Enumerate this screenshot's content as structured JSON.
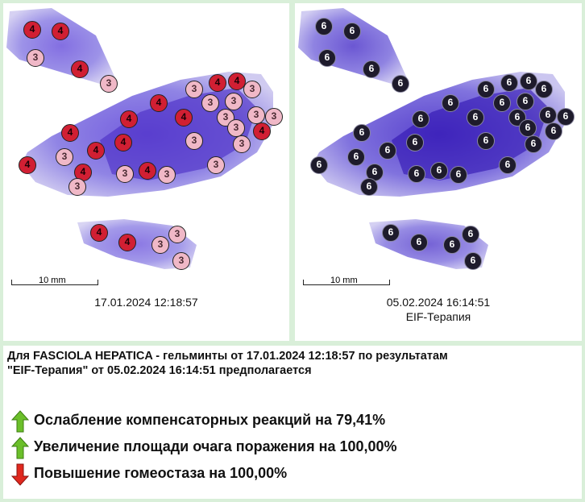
{
  "left_panel": {
    "scale_label": "10 mm",
    "timestamp": "17.01.2024 12:18:57",
    "marker_high": "4",
    "marker_low": "3"
  },
  "right_panel": {
    "scale_label": "10 mm",
    "timestamp": "05.02.2024 16:14:51",
    "therapy_label": "EIF-Терапия",
    "marker": "6"
  },
  "summary": {
    "line1": "Для FASCIOLA HEPATICA - гельминты от 17.01.2024 12:18:57 по результатам",
    "line2": "\"EIF-Терапия\" от 05.02.2024 16:14:51 предполагается"
  },
  "results": [
    {
      "text": "Ослабление компенсаторных реакций на 79,41%",
      "direction": "up",
      "icon": "green-up-arrow-icon"
    },
    {
      "text": "Увеличение площади очага поражения на 100,00%",
      "direction": "up",
      "icon": "green-up-arrow-icon"
    },
    {
      "text": "Повышение гомеостаза на 100,00%",
      "direction": "down",
      "icon": "red-down-arrow-icon"
    }
  ],
  "colors": {
    "background": "#d9efd9",
    "marker_red": "#d11f33",
    "marker_pink": "#f0b8c7",
    "marker_dark": "#1e1b2c",
    "tissue_purple": "#7a6ad9",
    "arrow_green": "#6bbf2a",
    "arrow_red": "#e0281e"
  }
}
